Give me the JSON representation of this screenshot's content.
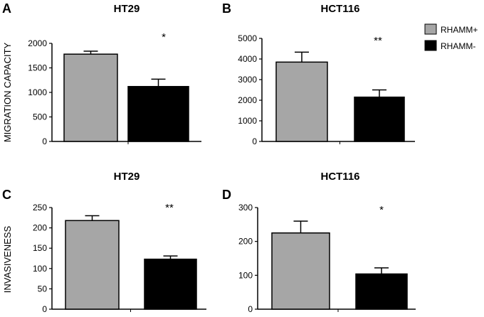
{
  "legend": [
    {
      "label": "RHAMM+",
      "color": "#a6a6a6"
    },
    {
      "label": "RHAMM-",
      "color": "#000000"
    }
  ],
  "row_labels": {
    "top": "MIGRATION CAPACITY",
    "bottom": "INVASIVENESS"
  },
  "chart_data": [
    {
      "panel": "A",
      "type": "bar",
      "title": "HT29",
      "categories": [
        "RHAMM+",
        "RHAMM-"
      ],
      "values": [
        1780,
        1120
      ],
      "errors": [
        60,
        150
      ],
      "ylim": [
        0,
        2000
      ],
      "yticks": [
        0,
        500,
        1000,
        1500,
        2000
      ],
      "significance": "*"
    },
    {
      "panel": "B",
      "type": "bar",
      "title": "HCT116",
      "categories": [
        "RHAMM+",
        "RHAMM-"
      ],
      "values": [
        3850,
        2150
      ],
      "errors": [
        480,
        350
      ],
      "ylim": [
        0,
        5000
      ],
      "yticks": [
        0,
        1000,
        2000,
        3000,
        4000,
        5000
      ],
      "significance": "**"
    },
    {
      "panel": "C",
      "type": "bar",
      "title": "HT29",
      "categories": [
        "RHAMM+",
        "RHAMM-"
      ],
      "values": [
        218,
        123
      ],
      "errors": [
        12,
        8
      ],
      "ylim": [
        0,
        250
      ],
      "yticks": [
        0,
        50,
        100,
        150,
        200,
        250
      ],
      "significance": "**"
    },
    {
      "panel": "D",
      "type": "bar",
      "title": "HCT116",
      "categories": [
        "RHAMM+",
        "RHAMM-"
      ],
      "values": [
        225,
        104
      ],
      "errors": [
        35,
        18
      ],
      "ylim": [
        0,
        300
      ],
      "yticks": [
        0,
        100,
        200,
        300
      ],
      "significance": "*"
    }
  ]
}
